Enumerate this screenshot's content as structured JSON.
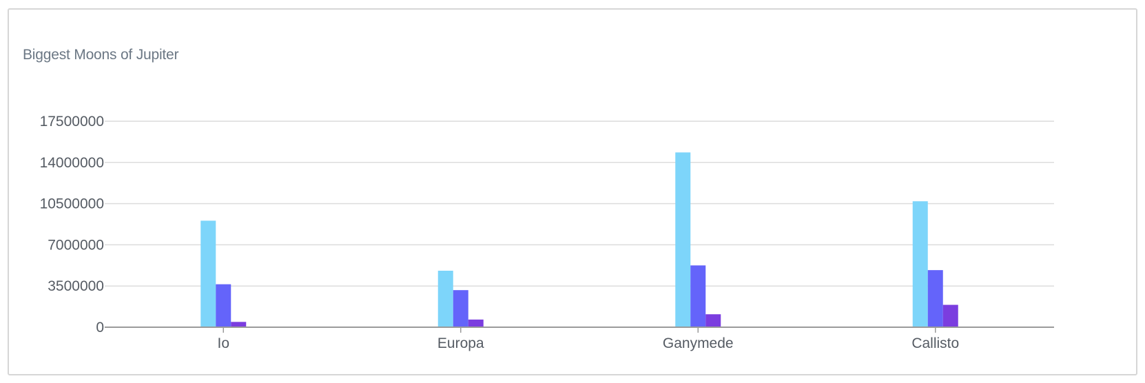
{
  "chart_data": {
    "type": "bar",
    "title": "Biggest Moons of Jupiter",
    "xlabel": "",
    "ylabel": "",
    "categories": [
      "Io",
      "Europa",
      "Ganymede",
      "Callisto"
    ],
    "series": [
      {
        "color": "#7dd5fa",
        "values": [
          9050000,
          4800000,
          14850000,
          10700000
        ]
      },
      {
        "color": "#6464fa",
        "values": [
          3650000,
          3150000,
          5250000,
          4850000
        ]
      },
      {
        "color": "#7b3ddf",
        "values": [
          450000,
          650000,
          1100000,
          1900000
        ]
      }
    ],
    "yticks": [
      0,
      3500000,
      7000000,
      10500000,
      14000000,
      17500000
    ],
    "ylim": [
      0,
      17500000
    ],
    "grid": true,
    "legend": "none",
    "colors": {
      "grid": "#dcdcdc",
      "axis": "#9a9a9a",
      "text": "#555b63",
      "title": "#6b7784"
    }
  }
}
